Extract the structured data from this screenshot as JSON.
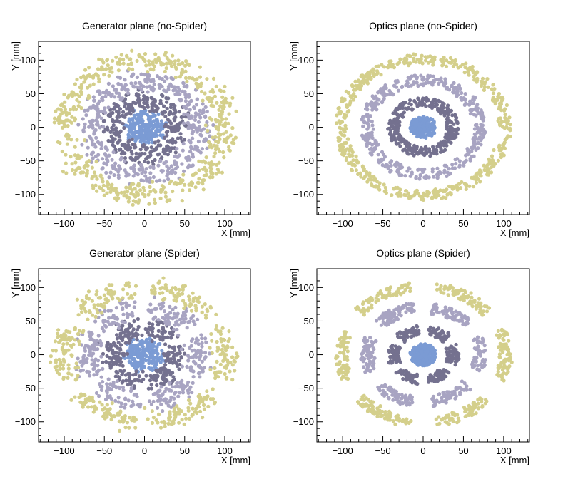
{
  "colors": {
    "ring0": "#7b9bd4",
    "ring1": "#74718f",
    "ring2": "#a8a4c2",
    "ring3": "#d4cf8b"
  },
  "chart_data": [
    {
      "type": "scatter",
      "title": "Generator plane (no-Spider)",
      "xlabel": "X [mm]",
      "ylabel": "Y [mm]",
      "xlim": [
        -132,
        132
      ],
      "ylim": [
        -130,
        128
      ],
      "xticks": [
        -100,
        -50,
        0,
        50,
        100
      ],
      "yticks": [
        -100,
        -50,
        0,
        50,
        100
      ],
      "tick_labels_x": [
        "−100",
        "−50",
        "0",
        "50",
        "100"
      ],
      "tick_labels_y": [
        "−100",
        "−50",
        "0",
        "50",
        "100"
      ],
      "spider": false,
      "rings": [
        {
          "color_key": "ring0",
          "r_min": 0,
          "r_max": 22,
          "npoints": 220,
          "blur": 5
        },
        {
          "color_key": "ring1",
          "r_min": 28,
          "r_max": 52,
          "npoints": 320,
          "blur": 6
        },
        {
          "color_key": "ring2",
          "r_min": 55,
          "r_max": 82,
          "npoints": 420,
          "blur": 7
        },
        {
          "color_key": "ring3",
          "r_min": 88,
          "r_max": 112,
          "npoints": 520,
          "blur": 8
        }
      ],
      "grid": false
    },
    {
      "type": "scatter",
      "title": "Optics plane (no-Spider)",
      "xlabel": "X [mm]",
      "ylabel": "Y [mm]",
      "xlim": [
        -132,
        132
      ],
      "ylim": [
        -130,
        128
      ],
      "xticks": [
        -100,
        -50,
        0,
        50,
        100
      ],
      "yticks": [
        -100,
        -50,
        0,
        50,
        100
      ],
      "tick_labels_x": [
        "−100",
        "−50",
        "0",
        "50",
        "100"
      ],
      "tick_labels_y": [
        "−100",
        "−50",
        "0",
        "50",
        "100"
      ],
      "spider": false,
      "rings": [
        {
          "color_key": "ring0",
          "r_min": 0,
          "r_max": 16,
          "npoints": 200,
          "blur": 1
        },
        {
          "color_key": "ring1",
          "r_min": 30,
          "r_max": 44,
          "npoints": 320,
          "blur": 1
        },
        {
          "color_key": "ring2",
          "r_min": 62,
          "r_max": 78,
          "npoints": 420,
          "blur": 1
        },
        {
          "color_key": "ring3",
          "r_min": 94,
          "r_max": 109,
          "npoints": 520,
          "blur": 1
        }
      ],
      "grid": false
    },
    {
      "type": "scatter",
      "title": "Generator plane (Spider)",
      "xlabel": "X [mm]",
      "ylabel": "Y [mm]",
      "xlim": [
        -132,
        132
      ],
      "ylim": [
        -130,
        128
      ],
      "xticks": [
        -100,
        -50,
        0,
        50,
        100
      ],
      "yticks": [
        -100,
        -50,
        0,
        50,
        100
      ],
      "tick_labels_x": [
        "−100",
        "−50",
        "0",
        "50",
        "100"
      ],
      "tick_labels_y": [
        "−100",
        "−50",
        "0",
        "50",
        "100"
      ],
      "spider": true,
      "spider_vanes": 6,
      "spider_half_width_deg": 7,
      "rings": [
        {
          "color_key": "ring0",
          "r_min": 0,
          "r_max": 22,
          "npoints": 220,
          "blur": 5
        },
        {
          "color_key": "ring1",
          "r_min": 28,
          "r_max": 52,
          "npoints": 300,
          "blur": 6
        },
        {
          "color_key": "ring2",
          "r_min": 55,
          "r_max": 82,
          "npoints": 380,
          "blur": 7
        },
        {
          "color_key": "ring3",
          "r_min": 88,
          "r_max": 112,
          "npoints": 460,
          "blur": 8
        }
      ],
      "grid": false
    },
    {
      "type": "scatter",
      "title": "Optics plane (Spider)",
      "xlabel": "X [mm]",
      "ylabel": "Y [mm]",
      "xlim": [
        -132,
        132
      ],
      "ylim": [
        -130,
        128
      ],
      "xticks": [
        -100,
        -50,
        0,
        50,
        100
      ],
      "yticks": [
        -100,
        -50,
        0,
        50,
        100
      ],
      "tick_labels_x": [
        "−100",
        "−50",
        "0",
        "50",
        "100"
      ],
      "tick_labels_y": [
        "−100",
        "−50",
        "0",
        "50",
        "100"
      ],
      "spider": true,
      "spider_vanes": 6,
      "spider_half_width_deg": 9,
      "rings": [
        {
          "color_key": "ring0",
          "r_min": 0,
          "r_max": 16,
          "npoints": 200,
          "blur": 1
        },
        {
          "color_key": "ring1",
          "r_min": 30,
          "r_max": 44,
          "npoints": 300,
          "blur": 1
        },
        {
          "color_key": "ring2",
          "r_min": 62,
          "r_max": 78,
          "npoints": 380,
          "blur": 1
        },
        {
          "color_key": "ring3",
          "r_min": 94,
          "r_max": 109,
          "npoints": 460,
          "blur": 1
        }
      ],
      "grid": false
    }
  ]
}
